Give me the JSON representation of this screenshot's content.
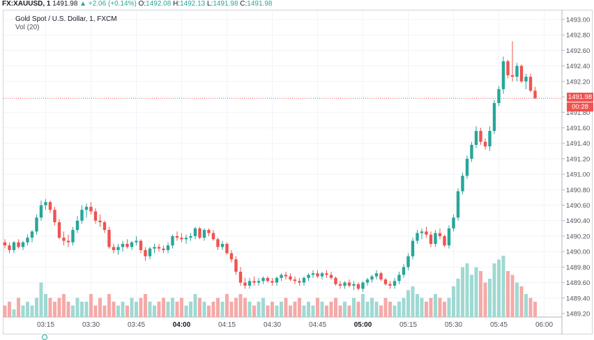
{
  "header": {
    "symbol": "FX:XAUUSD, 1",
    "last": "1491.98",
    "change": "+2.06 (+0.14%)",
    "open_label": "O:",
    "open": "1492.08",
    "high_label": "H:",
    "high": "1492.13",
    "low_label": "L:",
    "low": "1491.98",
    "close_label": "C:",
    "close": "1491.98"
  },
  "legend": {
    "title": "Gold Spot / U.S. Dollar, 1, FXCM",
    "volume": "Vol (20)"
  },
  "price_tag": {
    "last": "1491.98",
    "countdown": "00:28"
  },
  "colors": {
    "up": "#26a69a",
    "down": "#ef5350",
    "vol_up": "#9fd9d2",
    "vol_down": "#f4aaa8",
    "grid": "#f0f3fa",
    "axis_text": "#50535e",
    "last_line": "#ef5350"
  },
  "chart_data": {
    "type": "candlestick",
    "y_axis": {
      "min": 1489.2,
      "max": 1493.0,
      "ticks": [
        "1489.20",
        "1489.40",
        "1489.60",
        "1489.80",
        "1490.00",
        "1490.20",
        "1490.40",
        "1490.60",
        "1490.80",
        "1491.00",
        "1491.20",
        "1491.40",
        "1491.60",
        "1491.80",
        "1492.00",
        "1492.20",
        "1492.40",
        "1492.60",
        "1492.80",
        "1493.00"
      ]
    },
    "x_axis": {
      "ticks": [
        {
          "label": "03:15",
          "i": 9,
          "bold": false
        },
        {
          "label": "03:30",
          "i": 19,
          "bold": false
        },
        {
          "label": "03:45",
          "i": 29,
          "bold": false
        },
        {
          "label": "04:00",
          "i": 39,
          "bold": true
        },
        {
          "label": "04:15",
          "i": 49,
          "bold": false
        },
        {
          "label": "04:30",
          "i": 59,
          "bold": false
        },
        {
          "label": "04:45",
          "i": 69,
          "bold": false
        },
        {
          "label": "05:00",
          "i": 79,
          "bold": true
        },
        {
          "label": "05:15",
          "i": 89,
          "bold": false
        },
        {
          "label": "05:30",
          "i": 99,
          "bold": false
        },
        {
          "label": "05:45",
          "i": 109,
          "bold": false
        },
        {
          "label": "06:00",
          "i": 119,
          "bold": false
        }
      ]
    },
    "last_price": 1491.98,
    "volume_max": 20,
    "candles": [
      [
        1490.12,
        1490.16,
        1490.04,
        1490.08,
        3
      ],
      [
        1490.08,
        1490.12,
        1489.98,
        1490.02,
        4
      ],
      [
        1490.02,
        1490.14,
        1489.98,
        1490.12,
        2
      ],
      [
        1490.12,
        1490.16,
        1490.04,
        1490.06,
        5
      ],
      [
        1490.06,
        1490.14,
        1490.02,
        1490.12,
        3
      ],
      [
        1490.12,
        1490.22,
        1490.08,
        1490.18,
        4
      ],
      [
        1490.18,
        1490.28,
        1490.12,
        1490.26,
        3
      ],
      [
        1490.26,
        1490.48,
        1490.22,
        1490.44,
        5
      ],
      [
        1490.44,
        1490.66,
        1490.4,
        1490.6,
        9
      ],
      [
        1490.6,
        1490.68,
        1490.54,
        1490.64,
        6
      ],
      [
        1490.64,
        1490.66,
        1490.5,
        1490.54,
        5
      ],
      [
        1490.54,
        1490.58,
        1490.34,
        1490.38,
        4
      ],
      [
        1490.38,
        1490.42,
        1490.16,
        1490.18,
        5
      ],
      [
        1490.18,
        1490.26,
        1490.08,
        1490.14,
        6
      ],
      [
        1490.14,
        1490.22,
        1490.06,
        1490.12,
        4
      ],
      [
        1490.12,
        1490.32,
        1490.08,
        1490.28,
        3
      ],
      [
        1490.28,
        1490.46,
        1490.24,
        1490.4,
        5
      ],
      [
        1490.4,
        1490.6,
        1490.36,
        1490.54,
        4
      ],
      [
        1490.54,
        1490.62,
        1490.44,
        1490.58,
        4
      ],
      [
        1490.58,
        1490.64,
        1490.48,
        1490.52,
        6
      ],
      [
        1490.52,
        1490.56,
        1490.36,
        1490.4,
        3
      ],
      [
        1490.4,
        1490.48,
        1490.32,
        1490.38,
        5
      ],
      [
        1490.38,
        1490.4,
        1490.24,
        1490.28,
        3
      ],
      [
        1490.28,
        1490.32,
        1490.04,
        1490.06,
        6
      ],
      [
        1490.06,
        1490.1,
        1489.98,
        1490.02,
        4
      ],
      [
        1490.02,
        1490.1,
        1489.96,
        1490.06,
        3
      ],
      [
        1490.06,
        1490.14,
        1490.0,
        1490.1,
        4
      ],
      [
        1490.1,
        1490.16,
        1490.04,
        1490.06,
        3
      ],
      [
        1490.06,
        1490.14,
        1490.02,
        1490.12,
        5
      ],
      [
        1490.12,
        1490.2,
        1490.08,
        1490.14,
        4
      ],
      [
        1490.14,
        1490.16,
        1489.98,
        1490.02,
        5
      ],
      [
        1490.02,
        1490.06,
        1489.88,
        1489.94,
        6
      ],
      [
        1489.94,
        1490.06,
        1489.9,
        1490.04,
        4
      ],
      [
        1490.04,
        1490.1,
        1489.98,
        1490.06,
        3
      ],
      [
        1490.06,
        1490.1,
        1490.0,
        1490.04,
        4
      ],
      [
        1490.04,
        1490.08,
        1489.98,
        1490.02,
        5
      ],
      [
        1490.02,
        1490.12,
        1489.98,
        1490.08,
        4
      ],
      [
        1490.08,
        1490.22,
        1490.04,
        1490.2,
        5
      ],
      [
        1490.2,
        1490.26,
        1490.14,
        1490.18,
        4
      ],
      [
        1490.18,
        1490.24,
        1490.12,
        1490.16,
        5
      ],
      [
        1490.16,
        1490.22,
        1490.1,
        1490.18,
        3
      ],
      [
        1490.18,
        1490.24,
        1490.14,
        1490.2,
        4
      ],
      [
        1490.2,
        1490.32,
        1490.16,
        1490.3,
        6
      ],
      [
        1490.3,
        1490.32,
        1490.16,
        1490.18,
        5
      ],
      [
        1490.18,
        1490.3,
        1490.14,
        1490.28,
        4
      ],
      [
        1490.28,
        1490.3,
        1490.2,
        1490.24,
        3
      ],
      [
        1490.24,
        1490.28,
        1490.14,
        1490.16,
        4
      ],
      [
        1490.16,
        1490.18,
        1490.02,
        1490.06,
        5
      ],
      [
        1490.06,
        1490.14,
        1490.02,
        1490.1,
        4
      ],
      [
        1490.1,
        1490.12,
        1489.96,
        1489.98,
        6
      ],
      [
        1489.98,
        1490.02,
        1489.86,
        1489.9,
        4
      ],
      [
        1489.9,
        1489.94,
        1489.7,
        1489.74,
        5
      ],
      [
        1489.74,
        1489.8,
        1489.56,
        1489.6,
        6
      ],
      [
        1489.6,
        1489.66,
        1489.52,
        1489.56,
        5
      ],
      [
        1489.56,
        1489.66,
        1489.52,
        1489.62,
        4
      ],
      [
        1489.62,
        1489.68,
        1489.56,
        1489.6,
        3
      ],
      [
        1489.6,
        1489.66,
        1489.56,
        1489.62,
        4
      ],
      [
        1489.62,
        1489.68,
        1489.58,
        1489.66,
        5
      ],
      [
        1489.66,
        1489.68,
        1489.6,
        1489.62,
        3
      ],
      [
        1489.62,
        1489.66,
        1489.56,
        1489.6,
        4
      ],
      [
        1489.6,
        1489.68,
        1489.56,
        1489.66,
        3
      ],
      [
        1489.66,
        1489.72,
        1489.62,
        1489.7,
        4
      ],
      [
        1489.7,
        1489.74,
        1489.64,
        1489.68,
        5
      ],
      [
        1489.68,
        1489.72,
        1489.62,
        1489.64,
        3
      ],
      [
        1489.64,
        1489.68,
        1489.58,
        1489.62,
        4
      ],
      [
        1489.62,
        1489.66,
        1489.56,
        1489.6,
        5
      ],
      [
        1489.6,
        1489.68,
        1489.56,
        1489.66,
        3
      ],
      [
        1489.66,
        1489.72,
        1489.62,
        1489.7,
        4
      ],
      [
        1489.7,
        1489.76,
        1489.66,
        1489.72,
        3
      ],
      [
        1489.72,
        1489.76,
        1489.66,
        1489.68,
        5
      ],
      [
        1489.68,
        1489.74,
        1489.64,
        1489.72,
        4
      ],
      [
        1489.72,
        1489.76,
        1489.66,
        1489.7,
        3
      ],
      [
        1489.7,
        1489.74,
        1489.64,
        1489.66,
        4
      ],
      [
        1489.66,
        1489.68,
        1489.56,
        1489.58,
        5
      ],
      [
        1489.58,
        1489.62,
        1489.52,
        1489.56,
        3
      ],
      [
        1489.56,
        1489.62,
        1489.52,
        1489.6,
        4
      ],
      [
        1489.6,
        1489.64,
        1489.54,
        1489.56,
        3
      ],
      [
        1489.56,
        1489.62,
        1489.5,
        1489.58,
        5
      ],
      [
        1489.58,
        1489.6,
        1489.5,
        1489.52,
        4
      ],
      [
        1489.52,
        1489.62,
        1489.48,
        1489.6,
        6
      ],
      [
        1489.6,
        1489.66,
        1489.56,
        1489.64,
        4
      ],
      [
        1489.64,
        1489.7,
        1489.6,
        1489.68,
        5
      ],
      [
        1489.68,
        1489.76,
        1489.64,
        1489.72,
        4
      ],
      [
        1489.72,
        1489.74,
        1489.62,
        1489.64,
        3
      ],
      [
        1489.64,
        1489.66,
        1489.56,
        1489.58,
        5
      ],
      [
        1489.58,
        1489.62,
        1489.52,
        1489.56,
        4
      ],
      [
        1489.56,
        1489.66,
        1489.52,
        1489.62,
        3
      ],
      [
        1489.62,
        1489.74,
        1489.58,
        1489.7,
        4
      ],
      [
        1489.7,
        1489.84,
        1489.66,
        1489.8,
        5
      ],
      [
        1489.8,
        1489.98,
        1489.76,
        1489.94,
        7
      ],
      [
        1489.94,
        1490.18,
        1489.9,
        1490.14,
        8
      ],
      [
        1490.14,
        1490.28,
        1490.1,
        1490.24,
        6
      ],
      [
        1490.24,
        1490.3,
        1490.16,
        1490.26,
        5
      ],
      [
        1490.26,
        1490.32,
        1490.18,
        1490.22,
        4
      ],
      [
        1490.22,
        1490.26,
        1490.06,
        1490.1,
        5
      ],
      [
        1490.1,
        1490.28,
        1490.06,
        1490.24,
        6
      ],
      [
        1490.24,
        1490.3,
        1490.16,
        1490.2,
        5
      ],
      [
        1490.2,
        1490.22,
        1490.06,
        1490.08,
        4
      ],
      [
        1490.08,
        1490.34,
        1490.04,
        1490.3,
        5
      ],
      [
        1490.3,
        1490.48,
        1490.26,
        1490.44,
        8
      ],
      [
        1490.44,
        1490.82,
        1490.4,
        1490.78,
        10
      ],
      [
        1490.78,
        1491.02,
        1490.74,
        1490.98,
        13
      ],
      [
        1490.98,
        1491.24,
        1490.94,
        1491.2,
        14
      ],
      [
        1491.2,
        1491.42,
        1491.16,
        1491.38,
        11
      ],
      [
        1491.38,
        1491.62,
        1491.34,
        1491.56,
        13
      ],
      [
        1491.56,
        1491.6,
        1491.38,
        1491.42,
        12
      ],
      [
        1491.42,
        1491.46,
        1491.32,
        1491.36,
        9
      ],
      [
        1491.36,
        1491.62,
        1491.3,
        1491.56,
        10
      ],
      [
        1491.56,
        1491.96,
        1491.52,
        1491.92,
        14
      ],
      [
        1491.92,
        1492.14,
        1491.88,
        1492.1,
        15
      ],
      [
        1492.1,
        1492.52,
        1492.04,
        1492.46,
        16
      ],
      [
        1492.46,
        1492.48,
        1492.24,
        1492.28,
        12
      ],
      [
        1492.28,
        1492.72,
        1492.2,
        1492.26,
        11
      ],
      [
        1492.26,
        1492.44,
        1492.2,
        1492.4,
        9
      ],
      [
        1492.4,
        1492.42,
        1492.18,
        1492.2,
        8
      ],
      [
        1492.2,
        1492.3,
        1492.1,
        1492.26,
        6
      ],
      [
        1492.26,
        1492.3,
        1492.06,
        1492.08,
        5
      ],
      [
        1492.08,
        1492.13,
        1491.98,
        1491.98,
        4
      ]
    ]
  }
}
